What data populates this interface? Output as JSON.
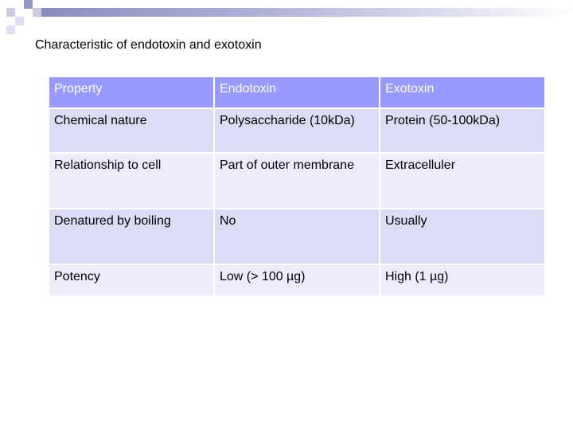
{
  "title": "Characteristic of endotoxin and exotoxin",
  "table": {
    "headers": [
      "Property",
      "Endotoxin",
      "Exotoxin"
    ],
    "rows": [
      [
        "Chemical nature",
        "Polysaccharide (10kDa)",
        "Protein (50-100kDa)"
      ],
      [
        "Relationship to cell",
        "Part of outer membrane",
        "Extracelluler"
      ],
      [
        "Denatured by boiling",
        "No",
        "Usually"
      ],
      [
        "Potency",
        "Low (> 100 µg)",
        "High (1 µg)"
      ]
    ]
  },
  "colors": {
    "header_bg": "#9999ff",
    "row_bg_a": "#dcdcf6",
    "row_bg_b": "#ececfb",
    "accent_dark": "#9496c4"
  }
}
